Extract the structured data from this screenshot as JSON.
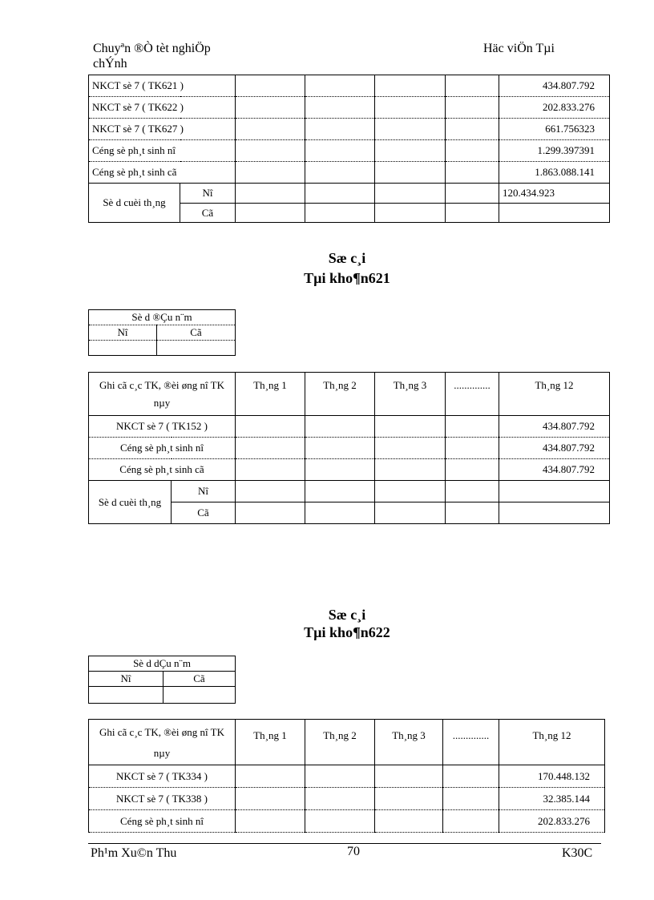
{
  "header": {
    "left_line1": "Chuyªn ®Ò tèt nghiÖp",
    "left_line2": "chÝnh",
    "right": "Häc viÖn Tµi"
  },
  "table_top": {
    "rows": [
      {
        "label": "NKCT sè 7 ( TK621 )",
        "month12": "434.807.792"
      },
      {
        "label": "NKCT sè 7 ( TK622 )",
        "month12": "202.833.276"
      },
      {
        "label": "NKCT sè 7 ( TK627 )",
        "month12": "661.756323"
      },
      {
        "label": "Céng sè ph¸t sinh nî",
        "month12": "1.299.397391"
      },
      {
        "label": "Céng sè ph¸t sinh cã",
        "month12": "1.863.088.141"
      }
    ],
    "closing_label": "Sè d  cuèi th¸ng",
    "debit_label": "Nî",
    "credit_label": "Cã",
    "closing_debit_month12": "120.434.923"
  },
  "ledger_621": {
    "title1": "Sæ c¸i",
    "title2": "Tµi kho¶n621",
    "opening": {
      "title": "Sè d  ®Çu n¨m",
      "debit": "Nî",
      "credit": "Cã"
    },
    "columns": [
      "Ghi cã c¸c TK, ®èi øng nî TK nµy",
      "Th¸ng  1",
      "Th¸ng  2",
      "Th¸ng  3",
      "..............",
      "Th¸ng  12"
    ],
    "rows": [
      {
        "label": "NKCT sè 7 ( TK152 )",
        "month12": "434.807.792"
      },
      {
        "label": "Céng sè ph¸t sinh nî",
        "month12": "434.807.792"
      },
      {
        "label": "Céng sè ph¸t sinh cã",
        "month12": "434.807.792"
      }
    ],
    "closing_label": "Sè d  cuèi th¸ng",
    "debit_label": "Nî",
    "credit_label": "Cã"
  },
  "ledger_622": {
    "title1": "Sæ c¸i",
    "title2": "Tµi kho¶n622",
    "opening": {
      "title": "Sè d  dÇu n¨m",
      "debit": "Nî",
      "credit": "Cã"
    },
    "columns": [
      "Ghi cã c¸c TK, ®èi øng nî TK nµy",
      "Th¸ng  1",
      "Th¸ng  2",
      "Th¸ng  3",
      "..............",
      "Th¸ng  12"
    ],
    "rows": [
      {
        "label": "NKCT sè 7 ( TK334 )",
        "month12": "170.448.132"
      },
      {
        "label": "NKCT sè 7 ( TK338 )",
        "month12": "32.385.144"
      },
      {
        "label": "Céng sè ph¸t sinh nî",
        "month12": "202.833.276"
      }
    ]
  },
  "footer": {
    "author": "Ph¹m Xu©n Thu",
    "page": "70",
    "class": "K30C"
  }
}
